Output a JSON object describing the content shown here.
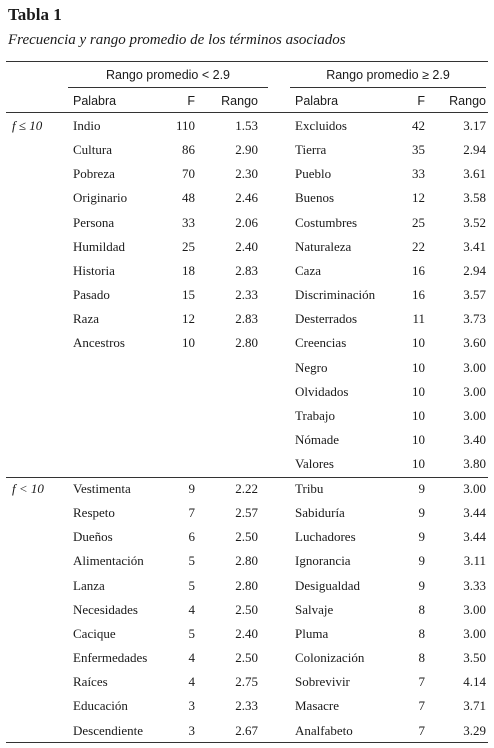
{
  "title": "Tabla 1",
  "subtitle": "Frecuencia y rango promedio de los términos asociados",
  "group_headers": [
    "Rango promedio < 2.9",
    "Rango promedio ≥ 2.9"
  ],
  "col_headers": {
    "word": "Palabra",
    "freq": "F",
    "rank": "Rango"
  },
  "sections": [
    {
      "label": "f ≤ 10",
      "left": [
        [
          "Indio",
          "110",
          "1.53"
        ],
        [
          "Cultura",
          "86",
          "2.90"
        ],
        [
          "Pobreza",
          "70",
          "2.30"
        ],
        [
          "Originario",
          "48",
          "2.46"
        ],
        [
          "Persona",
          "33",
          "2.06"
        ],
        [
          "Humildad",
          "25",
          "2.40"
        ],
        [
          "Historia",
          "18",
          "2.83"
        ],
        [
          "Pasado",
          "15",
          "2.33"
        ],
        [
          "Raza",
          "12",
          "2.83"
        ],
        [
          "Ancestros",
          "10",
          "2.80"
        ]
      ],
      "right": [
        [
          "Excluidos",
          "42",
          "3.17"
        ],
        [
          "Tierra",
          "35",
          "2.94"
        ],
        [
          "Pueblo",
          "33",
          "3.61"
        ],
        [
          "Buenos",
          "12",
          "3.58"
        ],
        [
          "Costumbres",
          "25",
          "3.52"
        ],
        [
          "Naturaleza",
          "22",
          "3.41"
        ],
        [
          "Caza",
          "16",
          "2.94"
        ],
        [
          "Discriminación",
          "16",
          "3.57"
        ],
        [
          "Desterrados",
          "11",
          "3.73"
        ],
        [
          "Creencias",
          "10",
          "3.60"
        ],
        [
          "Negro",
          "10",
          "3.00"
        ],
        [
          "Olvidados",
          "10",
          "3.00"
        ],
        [
          "Trabajo",
          "10",
          "3.00"
        ],
        [
          "Nómade",
          "10",
          "3.40"
        ],
        [
          "Valores",
          "10",
          "3.80"
        ]
      ]
    },
    {
      "label": "f < 10",
      "left": [
        [
          "Vestimenta",
          "9",
          "2.22"
        ],
        [
          "Respeto",
          "7",
          "2.57"
        ],
        [
          "Dueños",
          "6",
          "2.50"
        ],
        [
          "Alimentación",
          "5",
          "2.80"
        ],
        [
          "Lanza",
          "5",
          "2.80"
        ],
        [
          "Necesidades",
          "4",
          "2.50"
        ],
        [
          "Cacique",
          "5",
          "2.40"
        ],
        [
          "Enfermedades",
          "4",
          "2.50"
        ],
        [
          "Raíces",
          "4",
          "2.75"
        ],
        [
          "Educación",
          "3",
          "2.33"
        ],
        [
          "Descendiente",
          "3",
          "2.67"
        ]
      ],
      "right": [
        [
          "Tribu",
          "9",
          "3.00"
        ],
        [
          "Sabiduría",
          "9",
          "3.44"
        ],
        [
          "Luchadores",
          "9",
          "3.44"
        ],
        [
          "Ignorancia",
          "9",
          "3.11"
        ],
        [
          "Desigualdad",
          "9",
          "3.33"
        ],
        [
          "Salvaje",
          "8",
          "3.00"
        ],
        [
          "Pluma",
          "8",
          "3.00"
        ],
        [
          "Colonización",
          "8",
          "3.50"
        ],
        [
          "Sobrevivir",
          "7",
          "4.14"
        ],
        [
          "Masacre",
          "7",
          "3.71"
        ],
        [
          "Analfabeto",
          "7",
          "3.29"
        ]
      ]
    }
  ]
}
